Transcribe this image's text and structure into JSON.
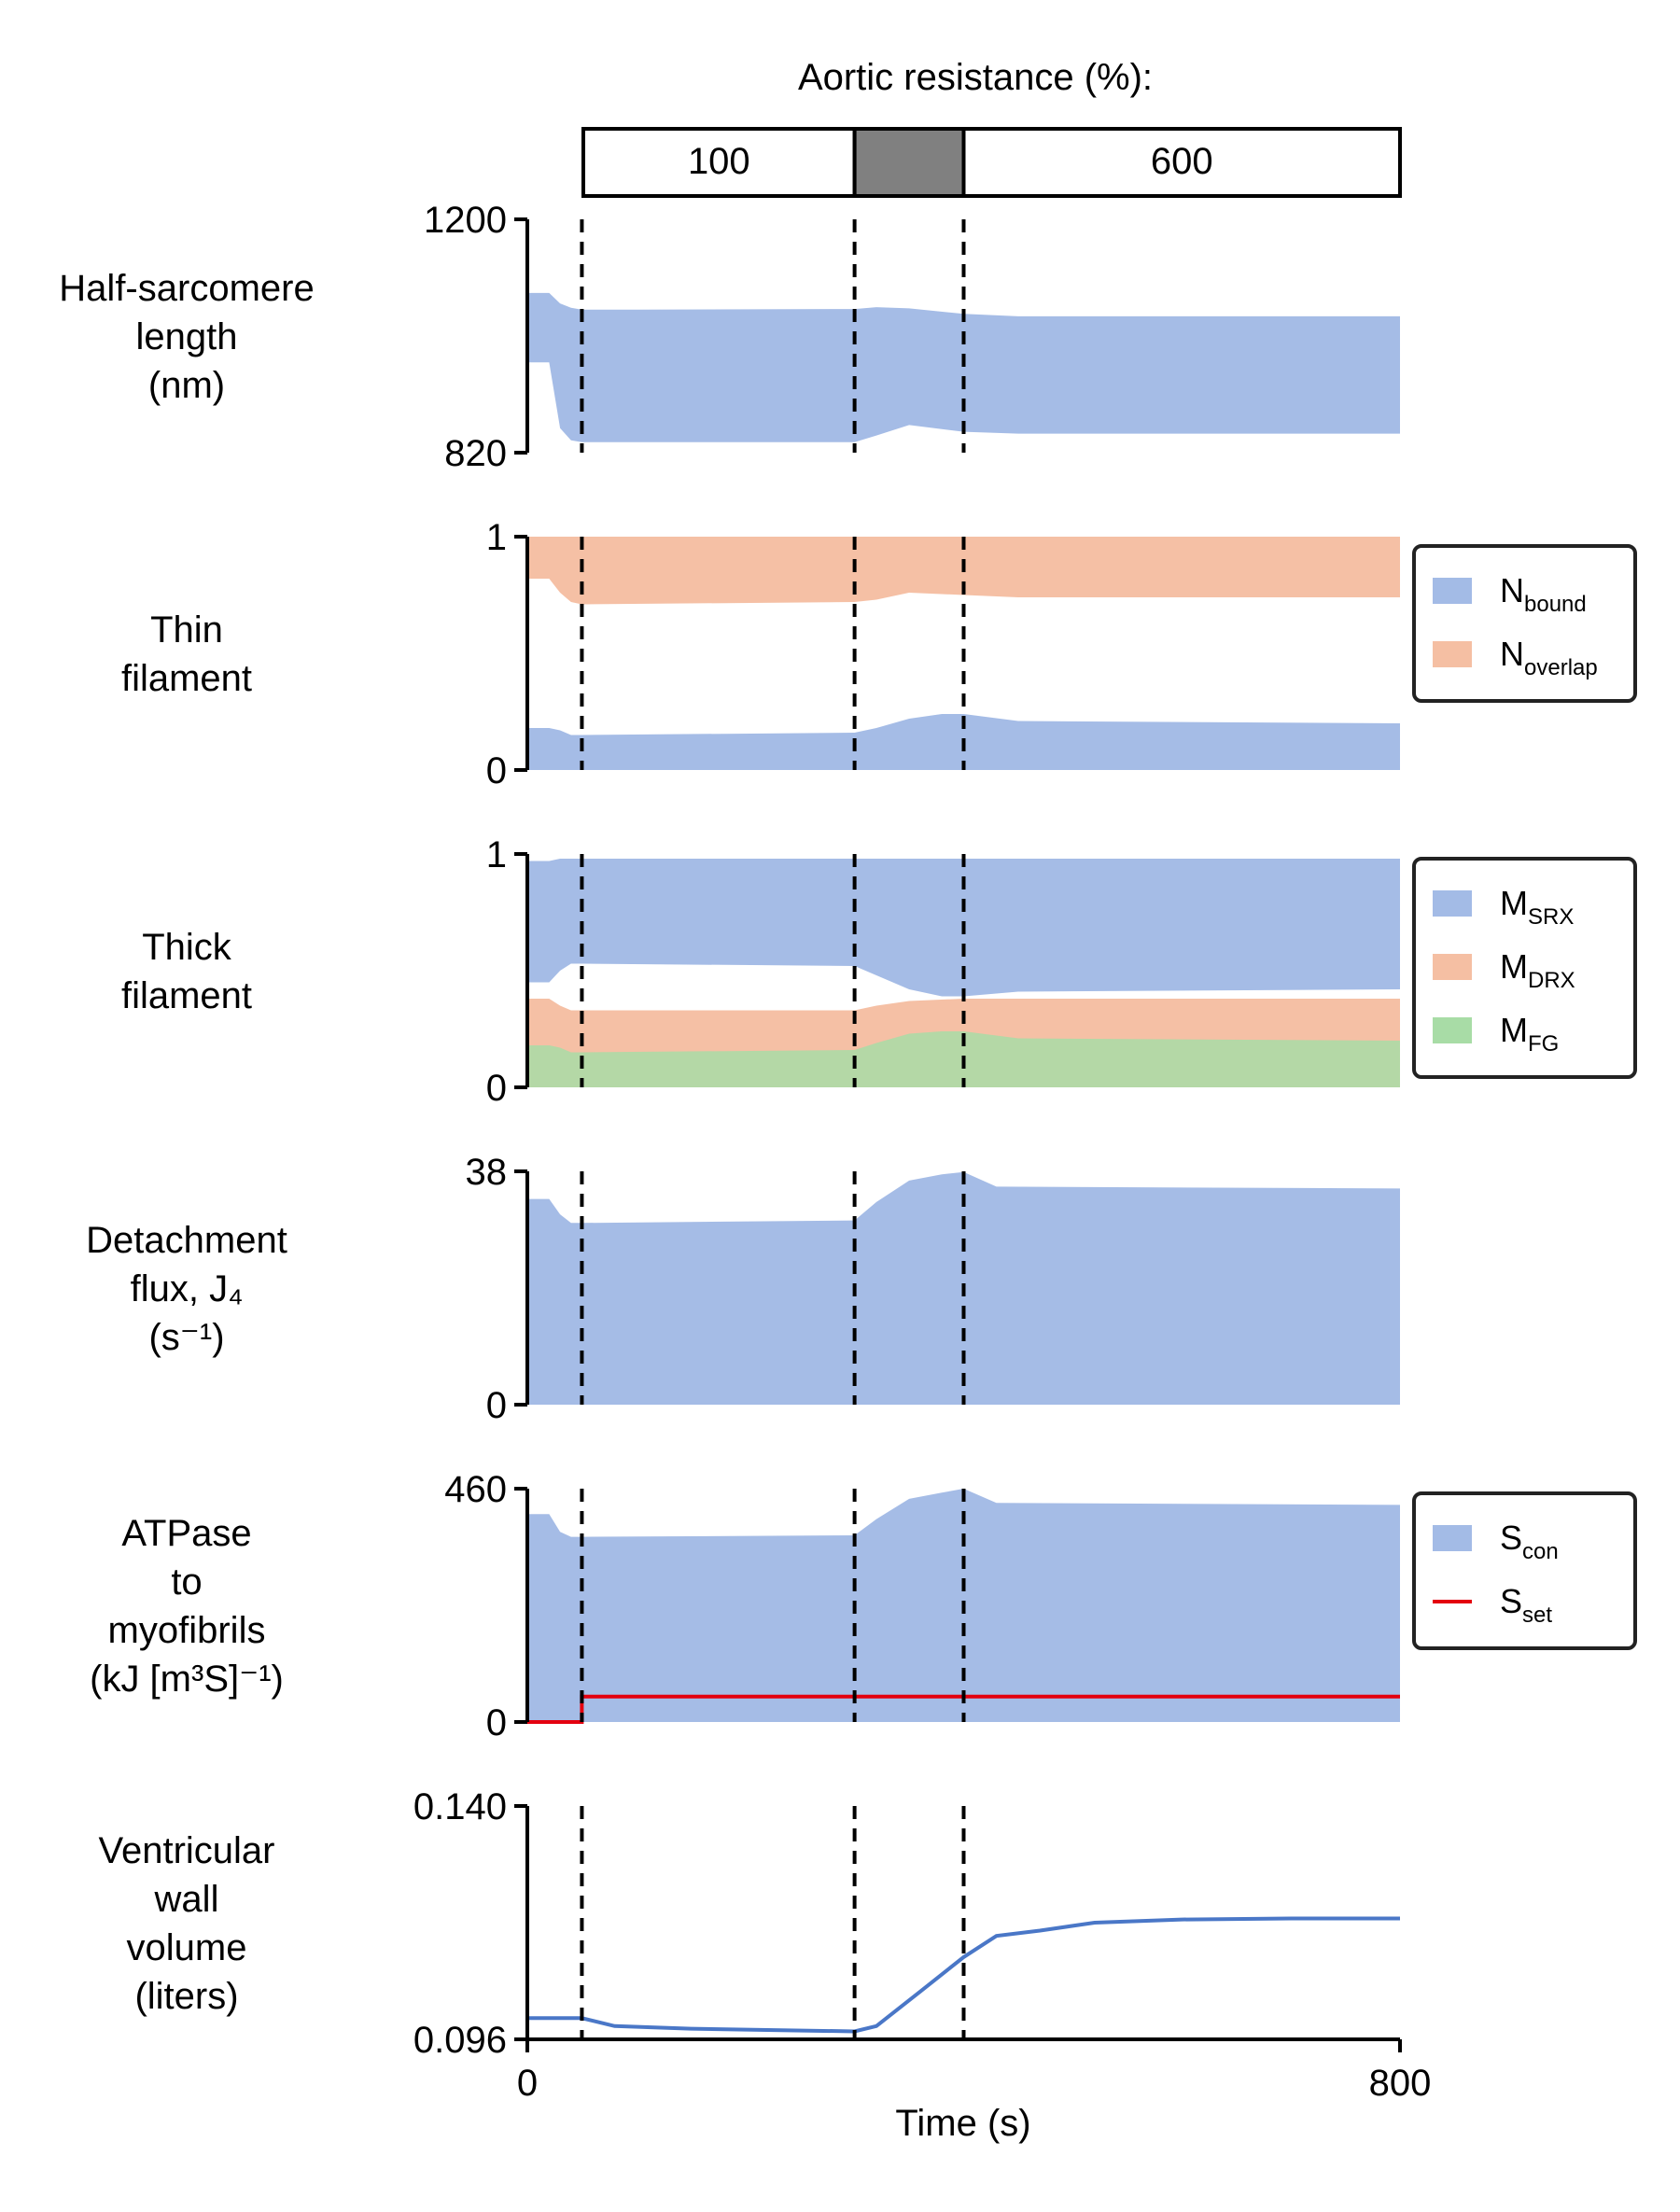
{
  "resistance_header": {
    "title": "Aortic resistance (%):",
    "segments": [
      {
        "label": "100",
        "fill": "#ffffff",
        "t_start": 0,
        "t_end": 300
      },
      {
        "label": "",
        "fill": "#808080",
        "t_start": 300,
        "t_end": 400
      },
      {
        "label": "600",
        "fill": "#ffffff",
        "t_start": 400,
        "t_end": 800
      }
    ]
  },
  "x_axis": {
    "label": "Time (s)",
    "min": 0,
    "max": 800,
    "ticks": [
      "0",
      "800"
    ]
  },
  "event_lines": [
    50,
    300,
    400
  ],
  "colors": {
    "blue": "#a3bbe6",
    "orange": "#f5bfa3",
    "green": "#a8dca6",
    "line_blue": "#4a77c7",
    "red": "#e4000f"
  },
  "chart_data": [
    {
      "type": "area",
      "label_lines": [
        "Half-sarcomere",
        "length",
        "(nm)"
      ],
      "ylim": [
        820,
        1200
      ],
      "ytick_labels": [
        "1200",
        "820"
      ],
      "series": [
        {
          "color": "#a3bbe6",
          "x": [
            0,
            20,
            30,
            40,
            50,
            100,
            300,
            320,
            350,
            400,
            450,
            500,
            800
          ],
          "upper": [
            1080,
            1080,
            1063,
            1056,
            1053,
            1053,
            1054,
            1057,
            1055,
            1046,
            1042,
            1042,
            1042
          ],
          "lower": [
            967,
            967,
            860,
            840,
            837,
            837,
            837,
            848,
            865,
            854,
            851,
            851,
            851
          ]
        }
      ]
    },
    {
      "type": "area",
      "label_lines": [
        "Thin",
        "filament"
      ],
      "ylim": [
        0,
        1
      ],
      "ytick_labels": [
        "1",
        "0"
      ],
      "legend": [
        "N_bound",
        "N_overlap"
      ],
      "series": [
        {
          "name": "N_overlap",
          "color": "#f5bfa3",
          "x": [
            0,
            20,
            30,
            40,
            50,
            300,
            320,
            350,
            400,
            450,
            800
          ],
          "upper": [
            1,
            1,
            1,
            1,
            1,
            1,
            1,
            1,
            1,
            1,
            1
          ],
          "lower": [
            0.82,
            0.82,
            0.76,
            0.72,
            0.71,
            0.72,
            0.73,
            0.76,
            0.75,
            0.74,
            0.74
          ]
        },
        {
          "name": "N_bound",
          "color": "#a3bbe6",
          "x": [
            0,
            20,
            30,
            40,
            50,
            300,
            320,
            350,
            380,
            400,
            450,
            800
          ],
          "upper": [
            0.18,
            0.18,
            0.17,
            0.15,
            0.15,
            0.16,
            0.18,
            0.22,
            0.24,
            0.24,
            0.21,
            0.2
          ],
          "lower": [
            0,
            0,
            0,
            0,
            0,
            0,
            0,
            0,
            0,
            0,
            0,
            0
          ]
        }
      ]
    },
    {
      "type": "area",
      "label_lines": [
        "Thick",
        "filament"
      ],
      "ylim": [
        0,
        1
      ],
      "ytick_labels": [
        "1",
        "0"
      ],
      "legend": [
        "M_SRX",
        "M_DRX",
        "M_FG"
      ],
      "series": [
        {
          "name": "M_SRX",
          "color": "#a3bbe6",
          "x": [
            0,
            20,
            30,
            40,
            50,
            300,
            320,
            350,
            380,
            400,
            450,
            800
          ],
          "upper": [
            0.97,
            0.97,
            0.98,
            0.98,
            0.98,
            0.98,
            0.98,
            0.98,
            0.98,
            0.98,
            0.98,
            0.98
          ],
          "lower": [
            0.45,
            0.45,
            0.5,
            0.53,
            0.53,
            0.52,
            0.48,
            0.42,
            0.39,
            0.39,
            0.41,
            0.42
          ]
        },
        {
          "name": "M_DRX",
          "color": "#f5bfa3",
          "x": [
            0,
            20,
            30,
            40,
            50,
            300,
            320,
            350,
            400,
            450,
            800
          ],
          "upper": [
            0.38,
            0.38,
            0.35,
            0.33,
            0.33,
            0.33,
            0.35,
            0.37,
            0.38,
            0.38,
            0.38
          ],
          "lower": [
            0,
            0,
            0,
            0,
            0,
            0,
            0,
            0,
            0,
            0,
            0
          ]
        },
        {
          "name": "M_FG",
          "color": "#a8dca6",
          "x": [
            0,
            20,
            30,
            40,
            50,
            300,
            320,
            350,
            380,
            400,
            450,
            800
          ],
          "upper": [
            0.18,
            0.18,
            0.17,
            0.15,
            0.15,
            0.16,
            0.19,
            0.23,
            0.24,
            0.24,
            0.21,
            0.2
          ],
          "lower": [
            0,
            0,
            0,
            0,
            0,
            0,
            0,
            0,
            0,
            0,
            0,
            0
          ]
        }
      ]
    },
    {
      "type": "area",
      "label_lines": [
        "Detachment",
        "flux, J₄",
        "(s⁻¹)"
      ],
      "ylim": [
        0,
        38
      ],
      "ytick_labels": [
        "38",
        "0"
      ],
      "series": [
        {
          "color": "#a3bbe6",
          "x": [
            0,
            20,
            30,
            40,
            50,
            300,
            320,
            350,
            380,
            400,
            430,
            800
          ],
          "upper": [
            33.5,
            33.5,
            31,
            29.6,
            29.6,
            30,
            33,
            36.5,
            37.5,
            37.9,
            35.5,
            35.2
          ],
          "lower": [
            0,
            0,
            0,
            0,
            0,
            0,
            0,
            0,
            0,
            0,
            0,
            0
          ]
        }
      ]
    },
    {
      "type": "area",
      "label_lines": [
        "ATPase",
        "to",
        "myofibrils",
        "(kJ [m³S]⁻¹)"
      ],
      "ylim": [
        0,
        460
      ],
      "ytick_labels": [
        "460",
        "0"
      ],
      "legend": [
        "S_con",
        "S_set"
      ],
      "series": [
        {
          "name": "S_con",
          "color": "#a3bbe6",
          "x": [
            0,
            20,
            30,
            40,
            50,
            300,
            320,
            350,
            380,
            400,
            430,
            800
          ],
          "upper": [
            410,
            410,
            375,
            365,
            365,
            368,
            400,
            440,
            452,
            460,
            432,
            428
          ],
          "lower": [
            0,
            0,
            0,
            0,
            0,
            0,
            0,
            0,
            0,
            0,
            0,
            0
          ]
        }
      ],
      "lines": [
        {
          "name": "S_set",
          "color": "#e4000f",
          "x": [
            0,
            50,
            50,
            800
          ],
          "y": [
            0,
            0,
            50,
            50
          ]
        }
      ]
    },
    {
      "type": "line",
      "label_lines": [
        "Ventricular",
        "wall",
        "volume",
        "(liters)"
      ],
      "ylim": [
        0.096,
        0.14
      ],
      "ytick_labels": [
        "0.140",
        "0.096"
      ],
      "series": [
        {
          "color": "#4a77c7",
          "x": [
            0,
            50,
            80,
            150,
            300,
            320,
            360,
            400,
            430,
            470,
            520,
            600,
            700,
            800
          ],
          "y": [
            0.1,
            0.1,
            0.0985,
            0.098,
            0.0975,
            0.0985,
            0.105,
            0.1115,
            0.1155,
            0.1165,
            0.118,
            0.1186,
            0.1188,
            0.1188
          ]
        }
      ]
    }
  ]
}
